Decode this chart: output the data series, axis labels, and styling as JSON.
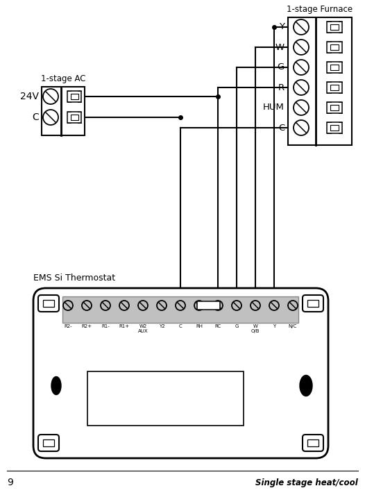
{
  "page_number": "9",
  "title_furnace": "1-stage Furnace",
  "title_ac": "1-stage AC",
  "label_24v": "24V",
  "label_c_ac": "C",
  "label_ems": "EMS Si Thermostat",
  "label_single_stage": "Single stage heat/cool",
  "furnace_terminals": [
    "Y",
    "W",
    "G",
    "R",
    "HUM",
    "C"
  ],
  "thermostat_terminals": [
    "R2-",
    "R2+",
    "R1-",
    "R1+",
    "W2\nAUX",
    "Y2",
    "C",
    "RH",
    "RC",
    "G",
    "W\nO/B",
    "Y",
    "N/C"
  ],
  "bg_color": "#ffffff",
  "line_color": "#000000",
  "wire_color": "#000000"
}
